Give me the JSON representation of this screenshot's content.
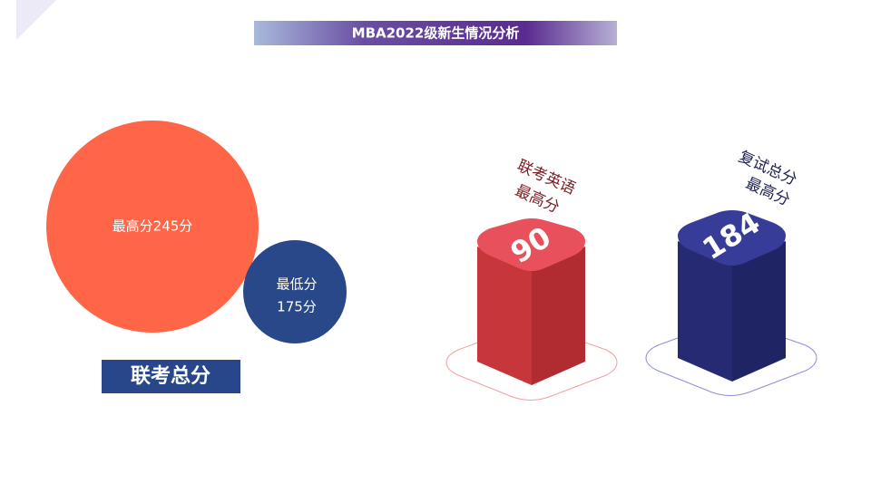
{
  "header": {
    "title": "MBA2022级新生情况分析"
  },
  "total_score": {
    "label": "联考总分",
    "max": {
      "text": [
        "最高分245分"
      ]
    },
    "min": {
      "text": [
        "最低分",
        "175分"
      ]
    }
  },
  "english": {
    "label": [
      "联考英语",
      "最高分"
    ],
    "value": 90
  },
  "retest": {
    "label": [
      "复试总分",
      "最高分"
    ],
    "value": 184
  }
}
